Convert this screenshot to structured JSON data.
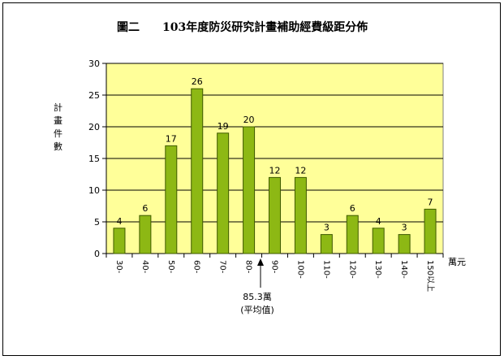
{
  "chart_data": {
    "type": "bar",
    "title": "圖二　 103年度防災研究計畫補助經費級距分佈",
    "title_parts": [
      "圖二",
      "103年度防災研究計畫補助經費級距分佈"
    ],
    "ylabel_chars": [
      "計",
      "畫",
      "件",
      "數"
    ],
    "xunit": "萬元",
    "categories": [
      "30-",
      "40-",
      "50-",
      "60-",
      "70-",
      "80-",
      "90-",
      "100-",
      "110-",
      "120-",
      "130-",
      "140-",
      "150以上"
    ],
    "values": [
      4,
      6,
      17,
      26,
      19,
      20,
      12,
      12,
      3,
      6,
      4,
      3,
      7
    ],
    "ylim": [
      0,
      30
    ],
    "yticks": [
      0,
      5,
      10,
      15,
      20,
      25,
      30
    ],
    "grid": true,
    "legend": "none",
    "colors": {
      "plot_background": "#FFFF99",
      "bar_fill": "#8DB814",
      "bar_stroke": "#3F5A00",
      "gridline": "#000000"
    },
    "annotation": {
      "line1": "85.3萬",
      "line2": "(平均值)",
      "x_value": 85.3
    }
  }
}
